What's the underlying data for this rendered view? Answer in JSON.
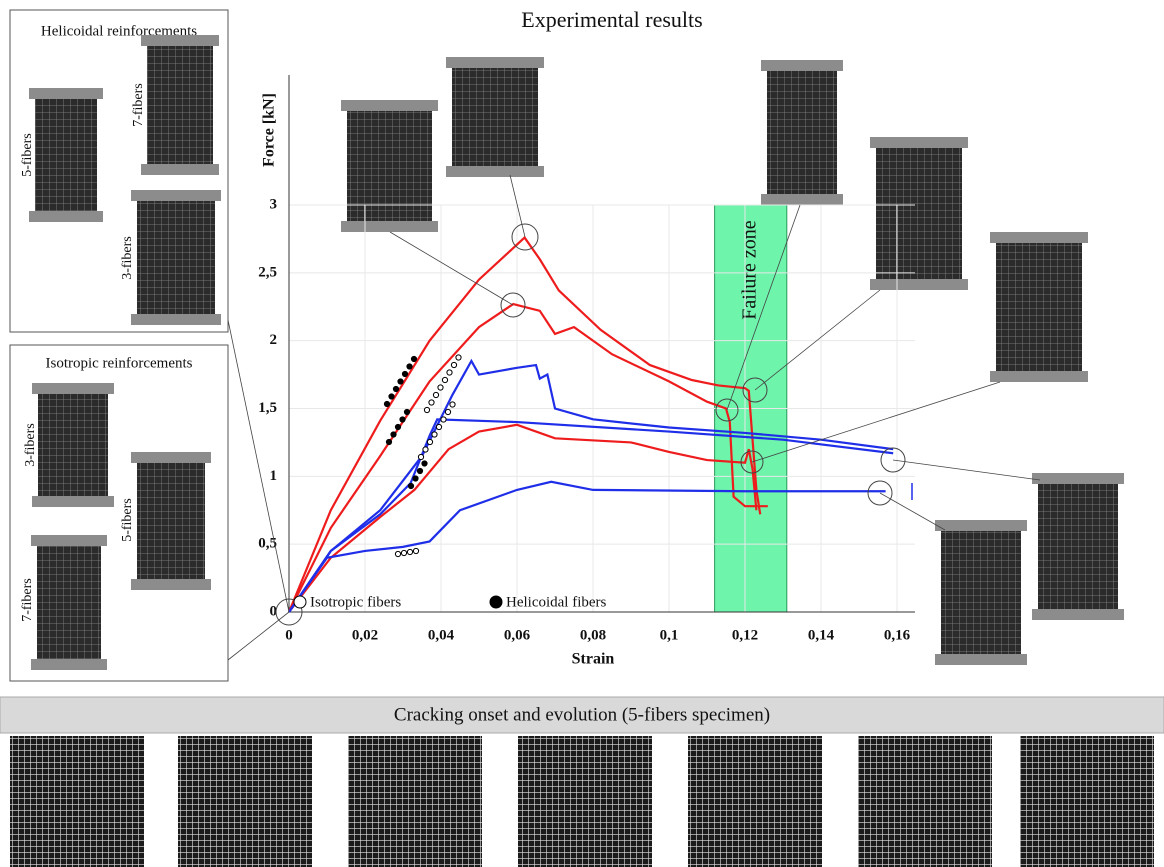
{
  "panels": {
    "helicoidal": {
      "title": "Helicoidal reinforcements",
      "labels": [
        "5-fibers",
        "7-fibers",
        "3-fibers"
      ]
    },
    "isotropic": {
      "title": "Isotropic reinforcements",
      "labels": [
        "3-fibers",
        "5-fibers",
        "7-fibers"
      ]
    },
    "strip": {
      "title": "Cracking onset and evolution (5-fibers specimen)"
    }
  },
  "chart_data": {
    "type": "line",
    "title": "Experimental results",
    "x_label": "Strain",
    "y_label": "Force [kN]",
    "xlim": [
      0,
      0.16
    ],
    "ylim": [
      0,
      3
    ],
    "xticks": [
      0,
      {
        "value": 0.02,
        "label": "0,02"
      },
      {
        "value": 0.04,
        "label": "0,04"
      },
      {
        "value": 0.06,
        "label": "0,06"
      },
      {
        "value": 0.08,
        "label": "0,08"
      },
      {
        "value": 0.1,
        "label": "0,1"
      },
      {
        "value": 0.12,
        "label": "0,12"
      },
      {
        "value": 0.14,
        "label": "0,14"
      },
      {
        "value": 0.16,
        "label": "0,16"
      }
    ],
    "yticks": [
      0,
      {
        "value": 0.5,
        "label": "0,5"
      },
      1,
      {
        "value": 1.5,
        "label": "1,5"
      },
      2,
      {
        "value": 2.5,
        "label": "2,5"
      },
      3
    ],
    "grid": true,
    "failure_zone": {
      "label": "Failure zone",
      "x": [
        0.112,
        0.131
      ],
      "color": "#3ef08f"
    },
    "legend": [
      {
        "label": "Isotropic fibers",
        "marker": "open"
      },
      {
        "label": "Helicoidal fibers",
        "marker": "filled"
      }
    ],
    "series": [
      {
        "color": "#ee1c1c",
        "x": [
          0,
          0.011,
          0.024,
          0.037,
          0.05,
          0.062,
          0.066,
          0.071,
          0.082,
          0.095,
          0.106,
          0.113,
          0.12,
          0.121,
          0.123,
          0.124
        ],
        "values": [
          0,
          0.75,
          1.41,
          2.0,
          2.45,
          2.76,
          2.6,
          2.37,
          2.08,
          1.82,
          1.71,
          1.67,
          1.65,
          1.63,
          0.9,
          0.72
        ]
      },
      {
        "color": "#ee1c1c",
        "x": [
          0,
          0.011,
          0.024,
          0.037,
          0.05,
          0.059,
          0.066,
          0.07,
          0.075,
          0.085,
          0.1,
          0.11,
          0.115,
          0.116,
          0.117,
          0.12,
          0.126
        ],
        "values": [
          0,
          0.62,
          1.15,
          1.7,
          2.1,
          2.27,
          2.22,
          2.05,
          2.1,
          1.9,
          1.7,
          1.55,
          1.5,
          1.4,
          0.85,
          0.78,
          0.78
        ]
      },
      {
        "color": "#ee1c1c",
        "x": [
          0,
          0.011,
          0.024,
          0.033,
          0.042,
          0.05,
          0.06,
          0.07,
          0.09,
          0.1,
          0.11,
          0.12,
          0.121,
          0.122,
          0.123
        ],
        "values": [
          0,
          0.4,
          0.7,
          0.9,
          1.2,
          1.33,
          1.38,
          1.28,
          1.25,
          1.18,
          1.12,
          1.1,
          1.2,
          1.05,
          0.75
        ]
      },
      {
        "color": "#1f2ee8",
        "x": [
          0,
          0.011,
          0.024,
          0.035,
          0.043,
          0.046,
          0.048,
          0.05,
          0.06,
          0.065,
          0.066,
          0.068,
          0.07,
          0.08,
          0.1,
          0.12,
          0.14,
          0.159
        ],
        "values": [
          0,
          0.45,
          0.75,
          1.15,
          1.6,
          1.75,
          1.85,
          1.75,
          1.8,
          1.82,
          1.72,
          1.75,
          1.5,
          1.42,
          1.36,
          1.32,
          1.27,
          1.2
        ]
      },
      {
        "color": "#1f2ee8",
        "x": [
          0,
          0.011,
          0.024,
          0.032,
          0.037,
          0.039,
          0.06,
          0.1,
          0.13,
          0.159
        ],
        "values": [
          0,
          0.45,
          0.72,
          0.95,
          1.3,
          1.42,
          1.4,
          1.33,
          1.27,
          1.17
        ]
      },
      {
        "color": "#1f2ee8",
        "x": [
          0,
          0.01,
          0.02,
          0.03,
          0.037,
          0.045,
          0.06,
          0.069,
          0.08,
          0.12,
          0.157
        ],
        "values": [
          0,
          0.4,
          0.45,
          0.48,
          0.52,
          0.75,
          0.9,
          0.96,
          0.9,
          0.89,
          0.89
        ]
      }
    ]
  }
}
